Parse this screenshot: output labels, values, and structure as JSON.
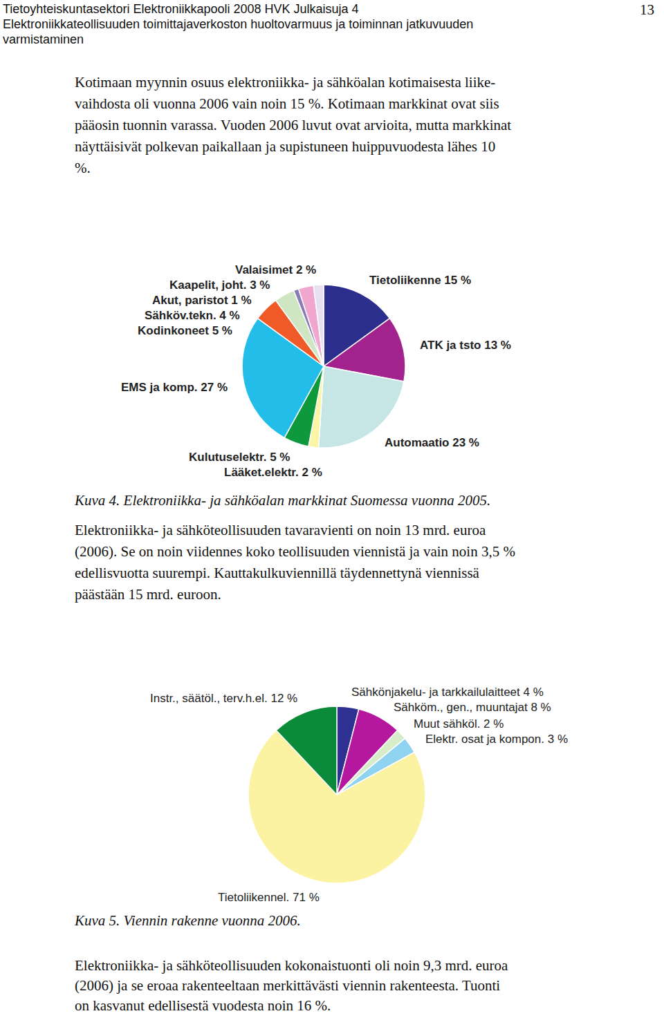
{
  "document": {
    "header": [
      "Tietoyhteiskuntasektori Elektroniikkapooli 2008 HVK Julkaisuja 4",
      "Elektroniikkateollisuuden toimittajaverkoston huoltovarmuus ja toiminnan jatkuvuuden",
      "varmistaminen"
    ],
    "page_number": "13",
    "paragraphs": [
      [
        "Kotimaan myynnin osuus elektroniikka- ja sähköalan kotimaisesta liike-",
        "vaihdosta oli vuonna 2006 vain noin 15 %. Kotimaan markkinat ovat siis",
        "pääosin tuonnin varassa. Vuoden 2006 luvut ovat arvioita, mutta markkinat",
        "näyttäisivät polkevan paikallaan ja supistuneen huippuvuodesta lähes 10",
        "%."
      ],
      [
        "Elektroniikka- ja sähköteollisuuden tavaravienti on noin 13 mrd. euroa",
        "(2006). Se on noin viidennes koko teollisuuden viennistä ja vain noin 3,5 %",
        "edellisvuotta suurempi. Kauttakulkuviennillä täydennettynä viennissä",
        "päästään 15 mrd. euroon."
      ],
      [
        "Elektroniikka- ja sähköteollisuuden kokonaistuonti oli noin 9,3 mrd. euroa",
        "(2006) ja se eroaa rakenteeltaan merkittävästi viennin rakenteesta. Tuonti",
        "on kasvanut edellisestä vuodesta noin 16 %."
      ]
    ],
    "captions": [
      "Kuva 4. Elektroniikka- ja sähköalan markkinat Suomessa vuonna 2005.",
      "Kuva 5. Viennin rakenne vuonna 2006."
    ]
  },
  "chart_data": [
    {
      "type": "pie",
      "categories": [
        "Tietoliikenne 15 %",
        "ATK ja tsto 13 %",
        "Automaatio 23 %",
        "Lääket.elektr. 2 %",
        "Kulutuselektr. 5 %",
        "EMS ja komp. 27 %",
        "Kodinkoneet 5 %",
        "Sähköv.tekn. 4 %",
        "Akut, paristot 1 %",
        "Kaapelit, joht. 3 %",
        "Valaisimet 2 %"
      ],
      "values": [
        15,
        13,
        23,
        2,
        5,
        27,
        5,
        4,
        1,
        3,
        2
      ],
      "colors": [
        "#2b2e8c",
        "#a3238e",
        "#c6e6e6",
        "#fbf6a6",
        "#0e9a3c",
        "#22bde9",
        "#f05a28",
        "#cfe6c3",
        "#8a7bb8",
        "#f0a6cf",
        "#e6e0f0"
      ]
    },
    {
      "type": "pie",
      "categories": [
        "Sähkönjakelu- ja tarkkailulaitteet 4 %",
        "Sähköm., gen., muuntajat 8 %",
        "Muut sähköl. 2 %",
        "Elektr. osat ja kompon. 3 %",
        "Tietoliikennel. 71 %",
        "Instr., säätöl., terv.h.el. 12 %"
      ],
      "values": [
        4,
        8,
        2,
        3,
        71,
        12
      ],
      "colors": [
        "#2e3192",
        "#b5179e",
        "#d7ecc9",
        "#8fd3f0",
        "#fbf3a2",
        "#0b8a3a"
      ]
    }
  ]
}
